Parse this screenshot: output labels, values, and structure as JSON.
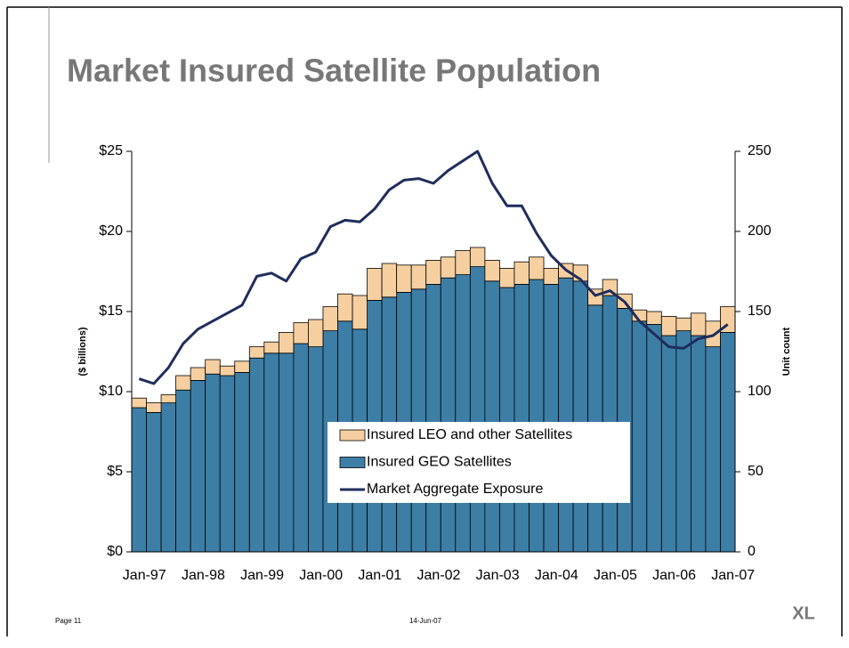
{
  "title": "Market Insured Satellite Population",
  "footer": {
    "page": "Page 11",
    "date": "14-Jun-07",
    "logo": "XL"
  },
  "chart_data": {
    "type": "bar",
    "stacked": true,
    "ylabel": "($ billions)",
    "y2label": "Unit count",
    "categories": [
      "Jan-97",
      null,
      null,
      null,
      "Jan-98",
      null,
      null,
      null,
      "Jan-99",
      null,
      null,
      null,
      "Jan-00",
      null,
      null,
      null,
      "Jan-01",
      null,
      null,
      null,
      "Jan-02",
      null,
      null,
      null,
      "Jan-03",
      null,
      null,
      null,
      "Jan-04",
      null,
      null,
      null,
      "Jan-05",
      null,
      null,
      null,
      "Jan-06",
      null,
      null,
      null,
      "Jan-07"
    ],
    "ylim": [
      0,
      25
    ],
    "yticks": [
      {
        "value": 0,
        "label": "$0"
      },
      {
        "value": 5,
        "label": "$5"
      },
      {
        "value": 10,
        "label": "$10"
      },
      {
        "value": 15,
        "label": "$15"
      },
      {
        "value": 20,
        "label": "$20"
      },
      {
        "value": 25,
        "label": "$25"
      }
    ],
    "y2lim": [
      0,
      250
    ],
    "y2ticks": [
      0,
      50,
      100,
      150,
      200,
      250
    ],
    "series": [
      {
        "name": "Insured GEO Satellites",
        "type": "bar",
        "axis": "y2",
        "color": "#3d7ea6",
        "values": [
          90,
          87,
          93,
          101,
          107,
          111,
          110,
          112,
          121,
          124,
          124,
          130,
          128,
          138,
          144,
          139,
          157,
          159,
          162,
          164,
          167,
          171,
          173,
          178,
          169,
          165,
          167,
          170,
          167,
          171,
          169,
          154,
          160,
          152,
          144,
          142,
          135,
          138,
          135,
          128,
          137
        ]
      },
      {
        "name": "Insured LEO and other Satellites",
        "type": "bar",
        "axis": "y2",
        "color": "#f6cfa0",
        "values": [
          6,
          6,
          5,
          9,
          8,
          9,
          6,
          7,
          7,
          7,
          13,
          13,
          17,
          15,
          17,
          21,
          20,
          21,
          17,
          15,
          15,
          13,
          15,
          12,
          13,
          12,
          14,
          14,
          10,
          9,
          10,
          10,
          10,
          9,
          7,
          8,
          12,
          8,
          14,
          16,
          16
        ]
      },
      {
        "name": "Market Aggregate Exposure",
        "type": "line",
        "color": "#1f2d5c",
        "values": [
          10.8,
          10.5,
          11.5,
          13.0,
          13.9,
          14.4,
          14.9,
          15.4,
          17.2,
          17.4,
          16.9,
          18.3,
          18.7,
          20.3,
          20.7,
          20.6,
          21.4,
          22.6,
          23.2,
          23.3,
          23.0,
          23.8,
          24.4,
          25.0,
          23.0,
          21.6,
          21.6,
          19.9,
          18.5,
          17.6,
          17.0,
          16.0,
          16.3,
          15.6,
          14.4,
          13.6,
          12.8,
          12.7,
          13.3,
          13.5,
          14.2
        ]
      }
    ]
  }
}
